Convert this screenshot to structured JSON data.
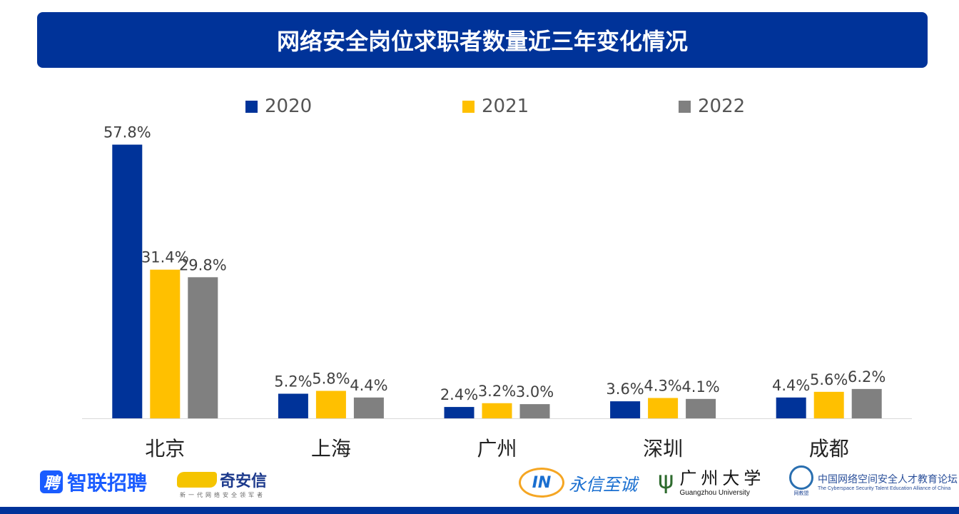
{
  "title": "网络安全岗位求职者数量近三年变化情况",
  "colors": {
    "title_bg": "#003399",
    "2020": "#003399",
    "2021": "#FFC000",
    "2022": "#808080"
  },
  "chart_data": {
    "type": "bar",
    "title": "网络安全岗位求职者数量近三年变化情况",
    "categories": [
      "北京",
      "上海",
      "广州",
      "深圳",
      "成都"
    ],
    "series": [
      {
        "name": "2020",
        "values": [
          57.8,
          5.2,
          2.4,
          3.6,
          4.4
        ],
        "labels": [
          "57.8%",
          "5.2%",
          "2.4%",
          "3.6%",
          "4.4%"
        ]
      },
      {
        "name": "2021",
        "values": [
          31.4,
          5.8,
          3.2,
          4.3,
          5.6
        ],
        "labels": [
          "31.4%",
          "5.8%",
          "3.2%",
          "4.3%",
          "5.6%"
        ]
      },
      {
        "name": "2022",
        "values": [
          29.8,
          4.4,
          3.0,
          4.1,
          6.2
        ],
        "labels": [
          "29.8%",
          "4.4%",
          "3.0%",
          "4.1%",
          "6.2%"
        ]
      }
    ],
    "unit": "%",
    "ylim": [
      0,
      60
    ],
    "grid": false,
    "legend_position": "top"
  },
  "logos": {
    "zhaopin": {
      "icon": "聘",
      "text": "智联招聘"
    },
    "qianxin": {
      "text": "奇安信",
      "tagline": "新一代网络安全领军者"
    },
    "yongxin": {
      "icon": "IN",
      "text": "永信至诚"
    },
    "gzhu": {
      "cn": "广州大学",
      "en": "Guangzhou University"
    },
    "alliance": {
      "cn": "中国网络空间安全人才教育论坛",
      "en": "The Cyberspace Security Talent Education Alliance of China",
      "short": "网教盟"
    }
  }
}
